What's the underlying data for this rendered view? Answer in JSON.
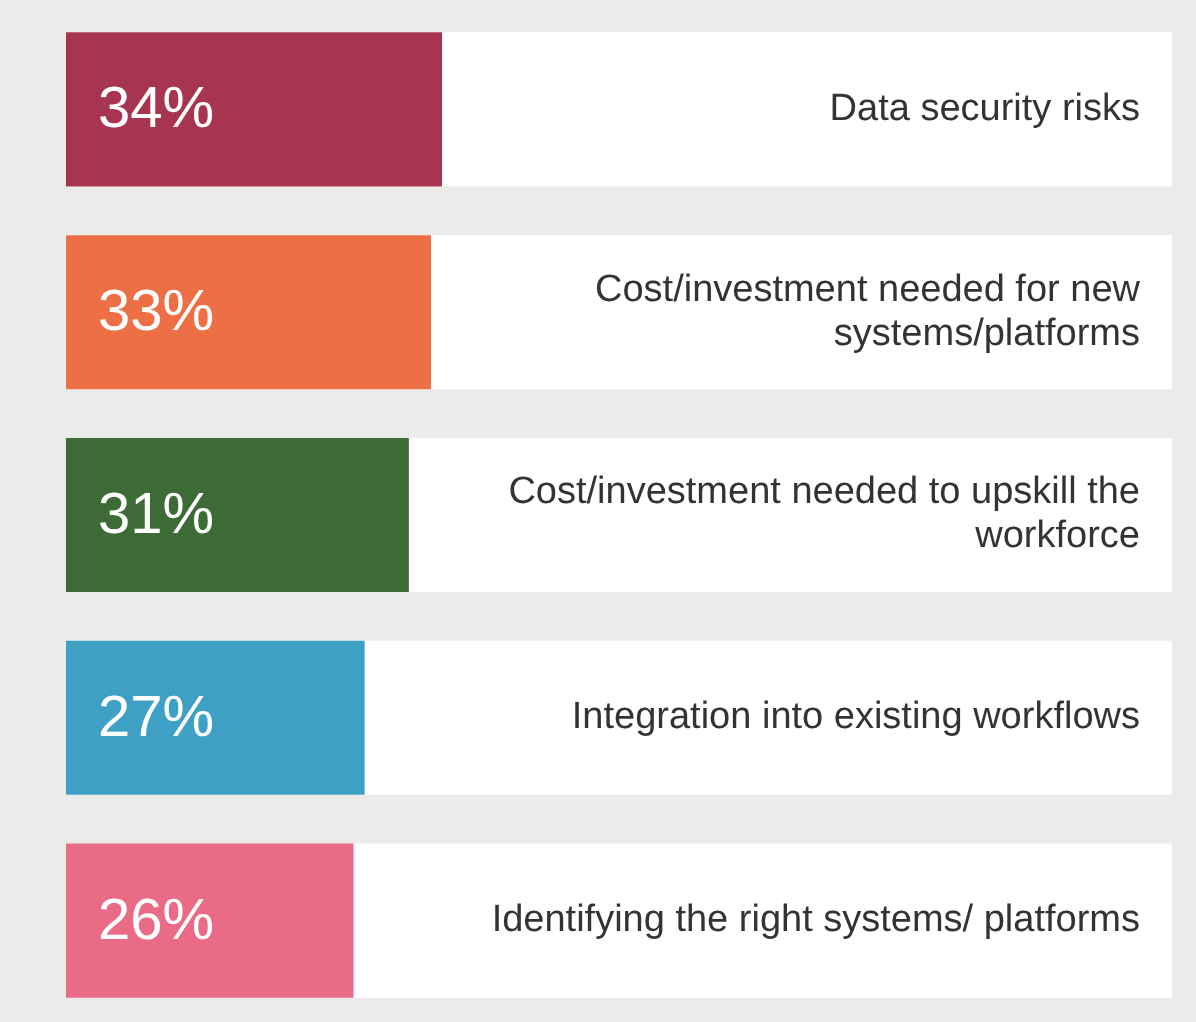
{
  "chart_data": {
    "type": "bar",
    "orientation": "horizontal",
    "categories": [
      "Data security risks",
      "Cost/investment needed for new systems/platforms",
      "Cost/investment needed to upskill the workforce",
      "Integration into existing workflows",
      "Identifying the right systems/ platforms"
    ],
    "values": [
      34,
      33,
      31,
      27,
      26
    ],
    "colors": [
      "#a8354f",
      "#ec6f46",
      "#3c6b35",
      "#3fa0c5",
      "#e96b85"
    ],
    "value_labels": [
      "34%",
      "33%",
      "31%",
      "27%",
      "26%"
    ],
    "xlim": [
      0,
      100
    ],
    "tick_labels": false,
    "grid": false,
    "legend": false
  }
}
